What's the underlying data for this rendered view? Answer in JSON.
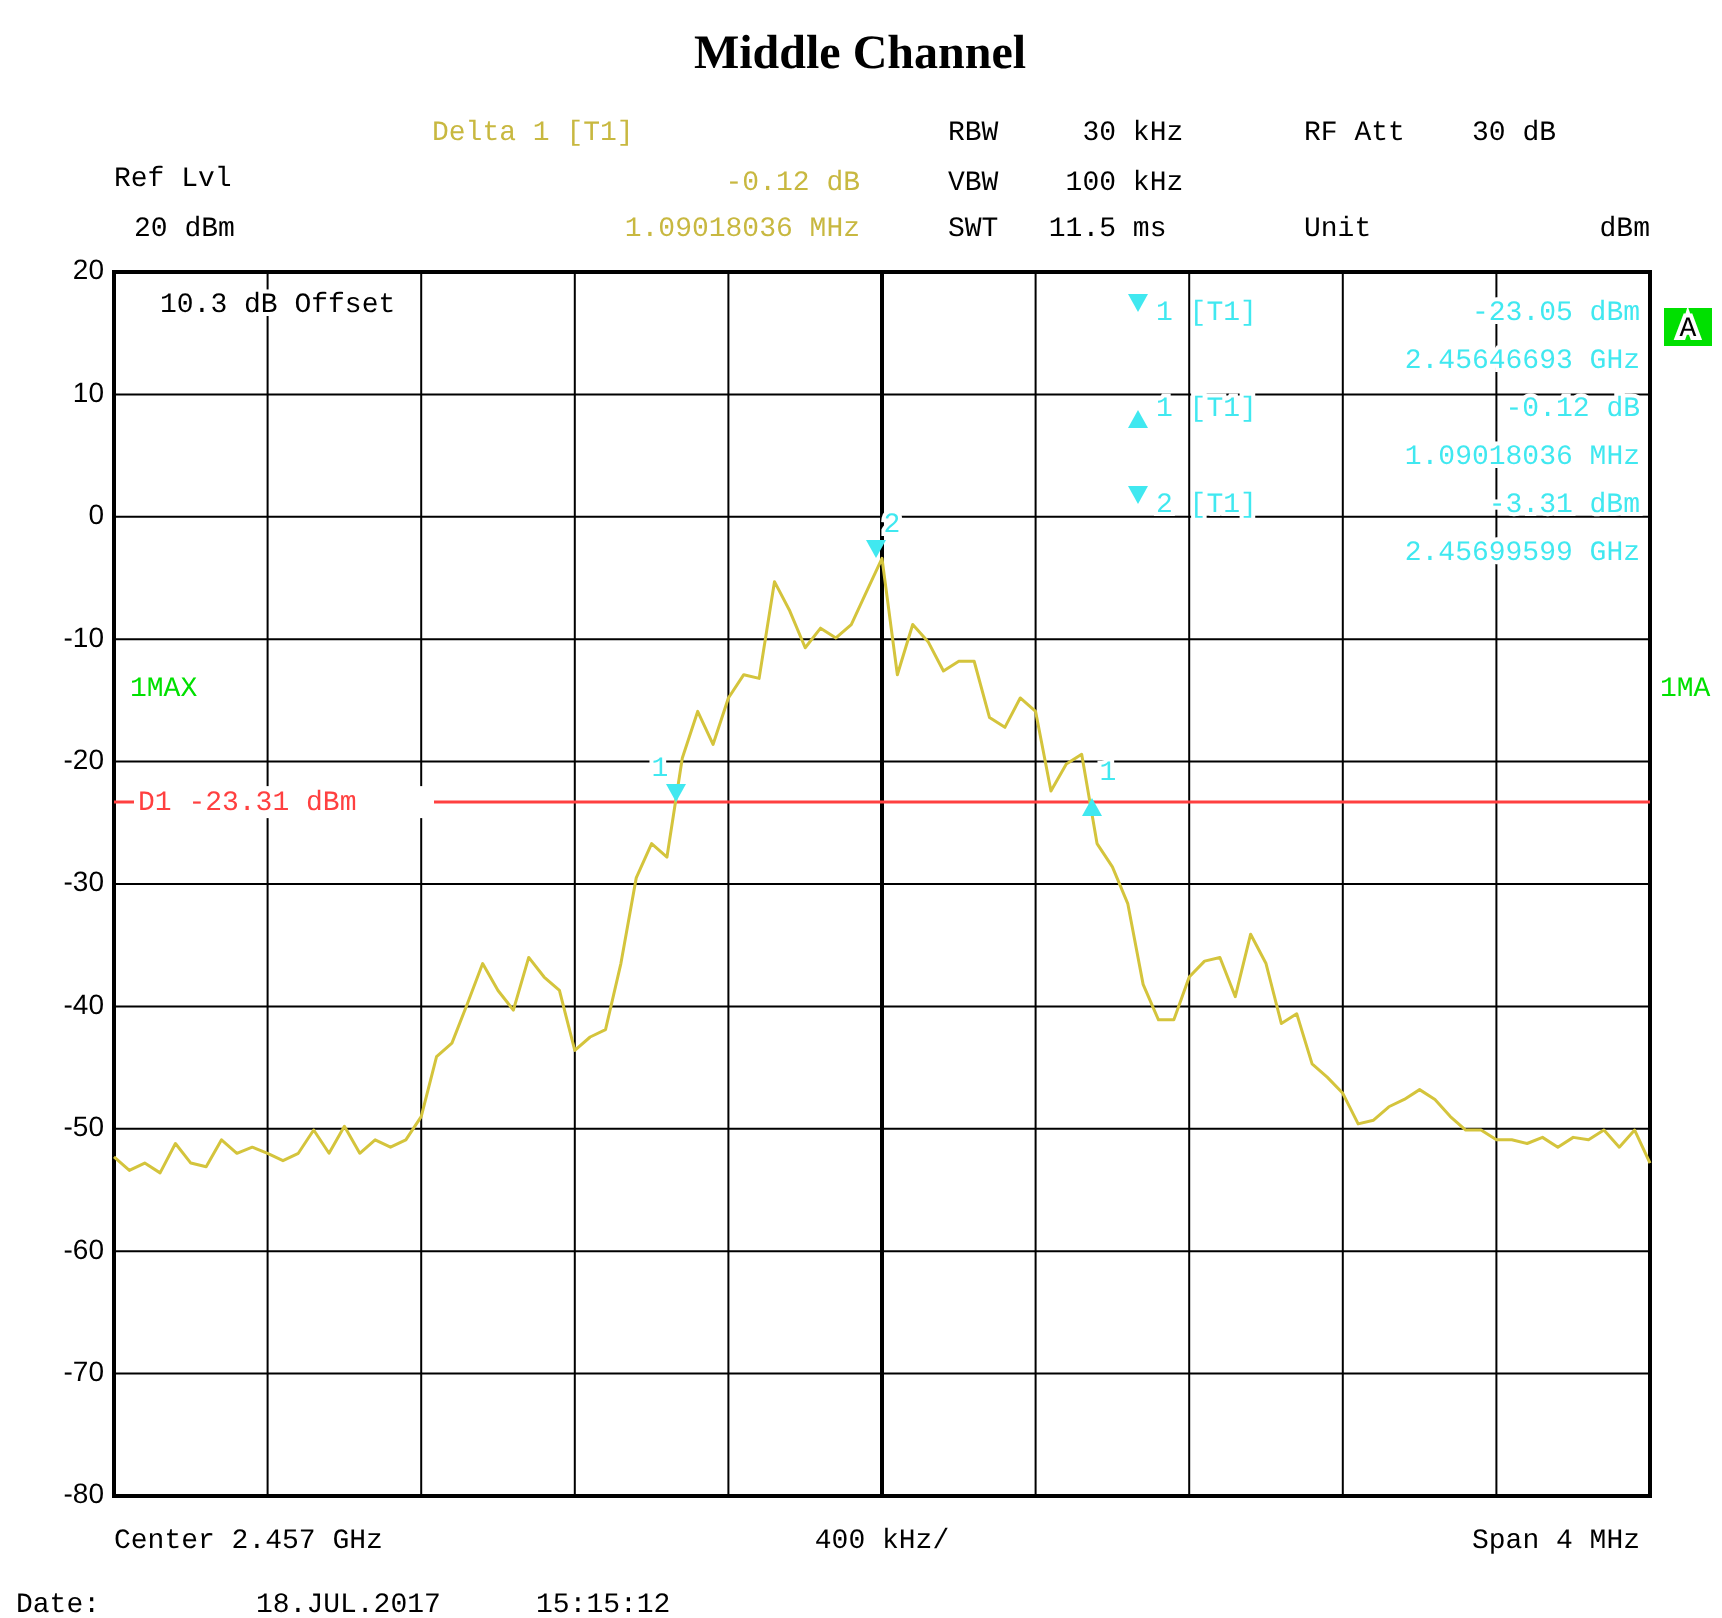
{
  "chart_data": {
    "type": "line",
    "title": "Middle Channel",
    "categories": [
      null,
      null,
      null,
      null,
      null,
      null,
      null,
      null,
      null,
      null,
      null,
      null,
      null,
      null,
      null,
      null,
      null,
      null,
      null,
      null,
      null,
      null,
      null,
      null,
      null,
      null,
      null,
      null,
      null,
      null,
      null,
      null,
      null,
      null,
      null,
      null,
      null,
      null,
      null,
      null,
      null,
      null,
      null,
      null,
      null,
      null,
      null,
      null,
      null,
      null,
      null,
      null,
      null,
      null,
      null,
      null,
      null,
      null,
      null,
      null,
      null,
      null,
      null,
      null,
      null,
      null,
      null,
      null,
      null,
      null,
      null,
      null,
      null,
      null,
      null,
      null,
      null,
      null,
      null,
      null,
      null,
      null,
      null,
      null,
      null,
      null,
      null,
      null,
      null,
      null,
      null,
      null,
      null,
      null,
      null,
      null,
      null,
      null,
      null,
      null,
      null
    ],
    "series": [
      {
        "color": "#d4c43c",
        "values": [
          -52.3,
          -53.4,
          -52.8,
          -53.6,
          -51.2,
          -52.8,
          -53.1,
          -50.9,
          -52.0,
          -51.5,
          -52.0,
          -52.6,
          -52.0,
          -50.1,
          -52.0,
          -49.8,
          -52.0,
          -50.9,
          -51.5,
          -50.9,
          -49.0,
          -44.1,
          -43.0,
          -39.8,
          -36.5,
          -38.7,
          -40.3,
          -36.0,
          -37.6,
          -38.7,
          -43.6,
          -42.5,
          -41.9,
          -36.5,
          -29.5,
          -26.7,
          -27.8,
          -19.7,
          -15.9,
          -18.6,
          -14.8,
          -12.9,
          -13.2,
          -5.3,
          -7.7,
          -10.7,
          -9.1,
          -9.9,
          -8.8,
          -6.1,
          -3.4,
          -12.9,
          -8.8,
          -10.2,
          -12.6,
          -11.8,
          -11.8,
          -16.4,
          -17.2,
          -14.8,
          -15.9,
          -22.4,
          -20.2,
          -19.4,
          -26.7,
          -28.6,
          -31.6,
          -38.2,
          -41.1,
          -41.1,
          -37.6,
          -36.3,
          -36.0,
          -39.2,
          -34.1,
          -36.5,
          -41.4,
          -40.6,
          -44.7,
          -45.8,
          -47.1,
          -49.6,
          -49.3,
          -48.2,
          -47.6,
          -46.8,
          -47.6,
          -49.0,
          -50.1,
          -50.1,
          -50.9,
          -50.9,
          -51.2,
          -50.7,
          -51.5,
          -50.7,
          -50.9,
          -50.1,
          -51.5,
          -50.1,
          -52.8
        ]
      }
    ],
    "ylim": [
      -80,
      20
    ],
    "yticks": [
      -80,
      -70,
      -60,
      -50,
      -40,
      -30,
      -20,
      -10,
      0,
      10,
      20
    ],
    "grid": true,
    "marker": "none",
    "line_style": "solid",
    "ref_lines": [
      {
        "axis": "y",
        "value": -23.31,
        "label": "D1 -23.31 dBm",
        "color": "#ff4040"
      }
    ],
    "annotations": [
      "Ref Lvl",
      "20 dBm",
      "Delta 1 [T1]",
      "-0.12 dB",
      "1.09018036 MHz",
      "RBW     30 kHz",
      "VBW    100 kHz",
      "SWT   11.5 ms",
      "RF Att    30 dB",
      "Unit",
      "dBm",
      "10.3 dB Offset",
      "1 [T1]",
      "-23.05 dBm",
      "2.45646693 GHz",
      "1 [T1]",
      "-0.12 dB",
      "1.09018036 MHz",
      "2 [T1]",
      "-3.31 dBm",
      "2.45699599 GHz",
      "1MAX",
      "1MA",
      "A",
      "Center 2.457 GHz",
      "400 kHz/",
      "Span 4 MHz",
      "Date:",
      "18.JUL.2017",
      "15:15:12",
      "1",
      "2",
      "1"
    ]
  }
}
